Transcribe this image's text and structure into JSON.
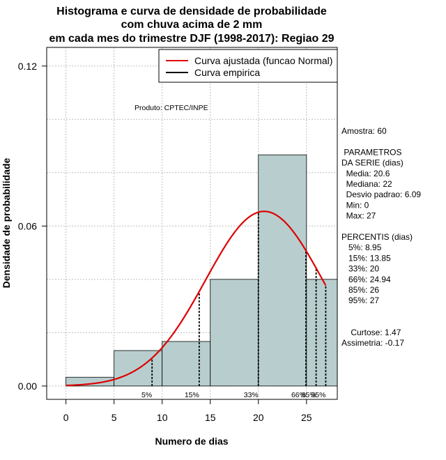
{
  "chart_data": {
    "type": "bar",
    "title_lines": [
      "Histograma e curva de densidade de probabilidade",
      "com chuva acima de 2 mm",
      "em cada mes do trimestre DJF (1998-2017): Regiao 29"
    ],
    "xlabel": "Numero de dias",
    "ylabel": "Densidade de probabilidade",
    "xlim": [
      -2,
      28.2
    ],
    "ylim": [
      -0.005,
      0.127
    ],
    "xticks": [
      "0",
      "5",
      "10",
      "15",
      "20",
      "25"
    ],
    "xtick_values": [
      0,
      5,
      10,
      15,
      20,
      25
    ],
    "yticks": [
      "0.00",
      "0.06",
      "0.12"
    ],
    "ytick_values": [
      0.0,
      0.06,
      0.12
    ],
    "grid": true,
    "gridlines_x": [
      0,
      5,
      10,
      15,
      20,
      25
    ],
    "gridlines_y": [
      0.0,
      0.02,
      0.04,
      0.06,
      0.08,
      0.1,
      0.12
    ],
    "bins": [
      {
        "from": 0,
        "to": 5,
        "density": 0.0033
      },
      {
        "from": 5,
        "to": 10,
        "density": 0.0133
      },
      {
        "from": 10,
        "to": 15,
        "density": 0.0167
      },
      {
        "from": 15,
        "to": 20,
        "density": 0.04
      },
      {
        "from": 20,
        "to": 25,
        "density": 0.0867
      },
      {
        "from": 25,
        "to": 28.2,
        "density": 0.04
      }
    ],
    "bar_color": "#b8cece",
    "normal_fit": {
      "mean": 20.6,
      "sd": 6.09,
      "color": "#dd0000",
      "name": "Curva ajustada (funcao Normal)"
    },
    "empirical_name": "Curva empirica",
    "percentile_lines": [
      {
        "label": "5%",
        "x": 8.95
      },
      {
        "label": "15%",
        "x": 13.85
      },
      {
        "label": "33%",
        "x": 20
      },
      {
        "label": "66%",
        "x": 24.94
      },
      {
        "label": "85%",
        "x": 26
      },
      {
        "label": "95%",
        "x": 27
      }
    ],
    "legend_position": "top-right",
    "product_note": "Produto: CPTEC/INPE",
    "stats_block": [
      "Amostra: 60",
      "",
      " PARAMETROS",
      "DA SERIE (dias)",
      "  Media: 20.6",
      "  Mediana: 22",
      "  Desvio padrao: 6.09",
      "  Min: 0",
      "  Max: 27",
      "",
      "PERCENTIS (dias)",
      "   5%: 8.95",
      "   15%: 13.85",
      "   33%: 20",
      "   66%: 24.94",
      "   85%: 26",
      "   95%: 27",
      "",
      "",
      "    Curtose: 1.47",
      "Assimetria: -0.17"
    ]
  }
}
